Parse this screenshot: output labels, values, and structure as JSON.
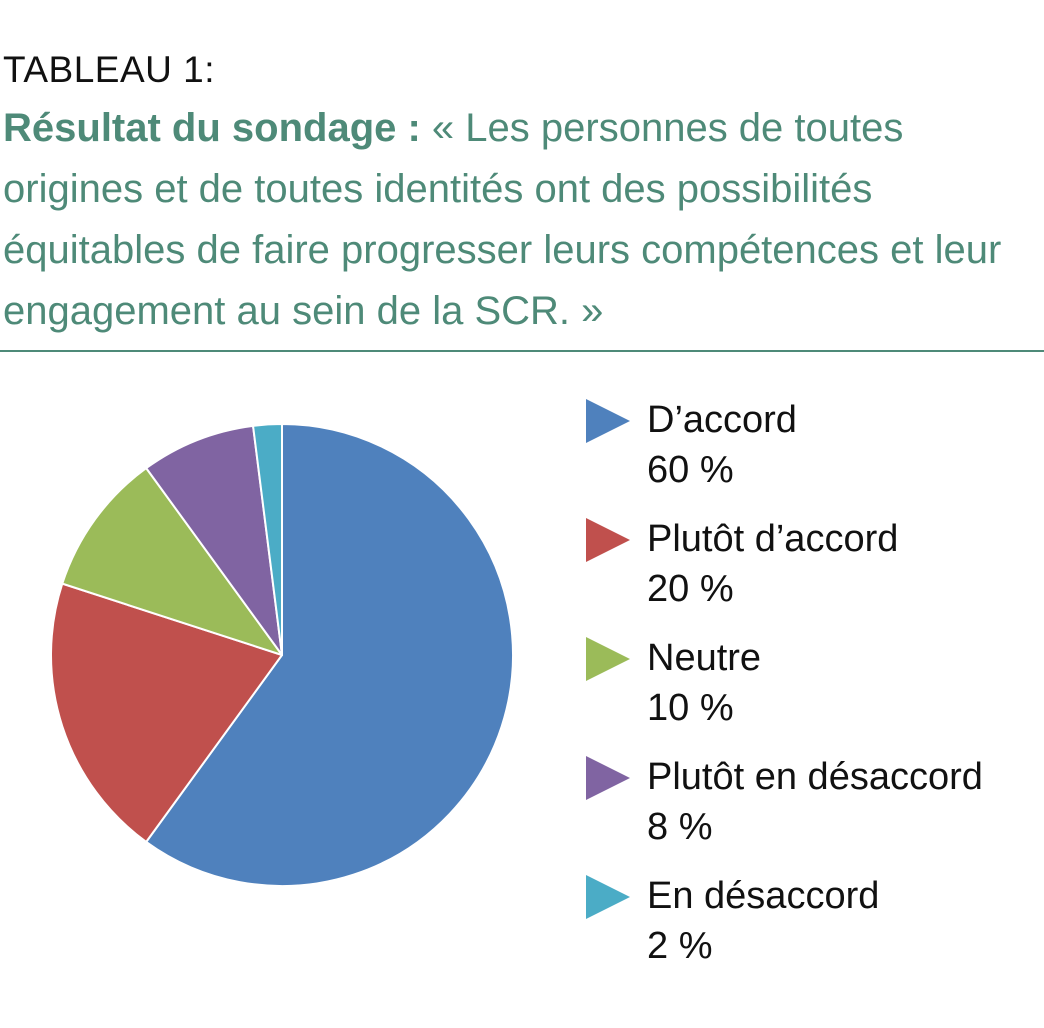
{
  "header": {
    "table_label": "TABLEAU 1:",
    "title_bold": "Résultat du sondage :",
    "title_rest": " « Les personnes de toutes origines et de toutes identités ont des possibilités équitables de faire progresser leurs compétences et leur engagement au sein de la SCR. »"
  },
  "chart_data": {
    "type": "pie",
    "title": "Résultat du sondage : « Les personnes de toutes origines et de toutes identités ont des possibilités équitables de faire progresser leurs compétences et leur engagement au sein de la SCR. »",
    "categories": [
      "D’accord",
      "Plutôt d’accord",
      "Neutre",
      "Plutôt en désaccord",
      "En désaccord"
    ],
    "values": [
      60,
      20,
      10,
      8,
      2
    ],
    "value_labels": [
      "60 %",
      "20 %",
      "10 %",
      "8 %",
      "2 %"
    ],
    "colors": [
      "#4f81bd",
      "#c0504d",
      "#9bbb59",
      "#8064a2",
      "#4bacc6"
    ],
    "legend_placement": "right",
    "start_angle_deg": 0,
    "direction": "clockwise"
  }
}
